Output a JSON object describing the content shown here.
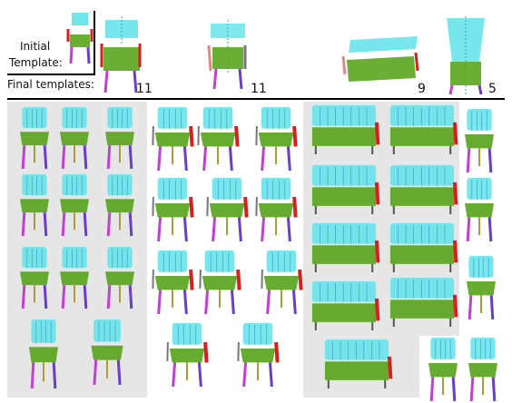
{
  "labels": {
    "initial": "Initial",
    "template": "Template:",
    "final": "Final templates:"
  },
  "template_counts": [
    "11",
    "11",
    "9",
    "5"
  ],
  "colors": {
    "back": "#5fe3ea",
    "seat": "#5aa51e",
    "arm": "#d81f1f",
    "leg_front": "#6a3fc8",
    "leg_back": "#c040d0",
    "leg_side": "#b09a3a",
    "panel_bg": "#e6e6e6"
  },
  "icons": [
    "chair-template-icon",
    "chair-render-icon",
    "bench-render-icon",
    "stool-render-icon"
  ]
}
